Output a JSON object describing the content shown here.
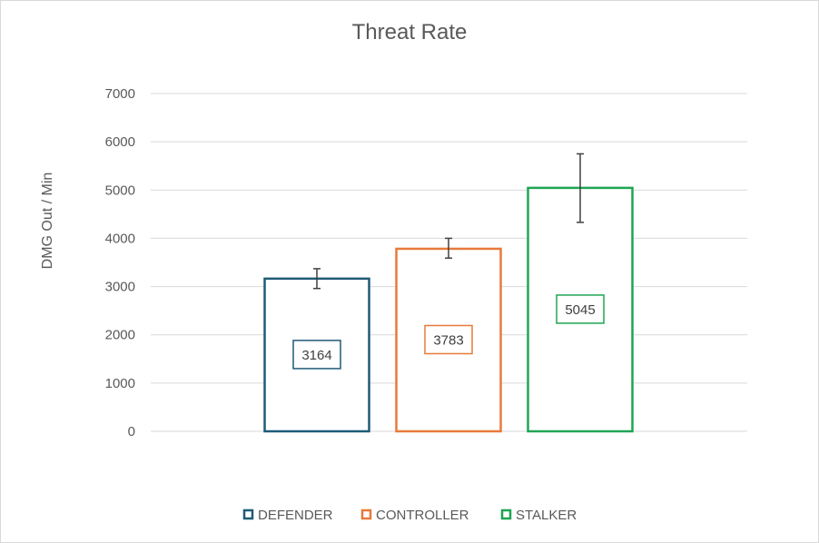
{
  "chart_data": {
    "type": "bar",
    "title": "Threat Rate",
    "ylabel": "DMG Out / Min",
    "xlabel": "",
    "ylim": [
      0,
      7000
    ],
    "yticks": [
      0,
      1000,
      2000,
      3000,
      4000,
      5000,
      6000,
      7000
    ],
    "grid": true,
    "legend_position": "bottom",
    "series": [
      {
        "name": "DEFENDER",
        "value": 3164,
        "label": "3164",
        "error_low": 2960,
        "error_high": 3370,
        "color": "#1f5a78"
      },
      {
        "name": "CONTROLLER",
        "value": 3783,
        "label": "3783",
        "error_low": 3590,
        "error_high": 4000,
        "color": "#e87a3a"
      },
      {
        "name": "STALKER",
        "value": 5045,
        "label": "5045",
        "error_low": 4330,
        "error_high": 5750,
        "color": "#1ea554"
      }
    ]
  }
}
